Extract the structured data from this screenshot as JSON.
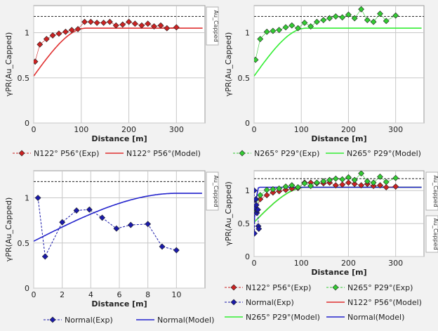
{
  "chart_data": [
    {
      "type": "line",
      "xlabel": "Distance [m]",
      "ylabel": "γPR(Au_Capped)",
      "side_tab": "Au_Capped",
      "xlim": [
        0,
        360
      ],
      "ylim": [
        0,
        1.3
      ],
      "xticks": [
        0,
        100,
        200,
        300
      ],
      "yticks": [
        0,
        0.5,
        1
      ],
      "grid": true,
      "sill": 1.18,
      "series": [
        {
          "name": "N122° P56°(Exp)",
          "kind": "exp",
          "color": "#cc2222",
          "marker": "diamond",
          "x": [
            3,
            13,
            27,
            40,
            53,
            67,
            80,
            93,
            107,
            120,
            133,
            147,
            160,
            173,
            187,
            200,
            213,
            227,
            240,
            253,
            267,
            280,
            300
          ],
          "y": [
            0.68,
            0.87,
            0.93,
            0.97,
            0.99,
            1.01,
            1.03,
            1.04,
            1.12,
            1.12,
            1.11,
            1.11,
            1.12,
            1.08,
            1.09,
            1.12,
            1.1,
            1.08,
            1.1,
            1.07,
            1.08,
            1.05,
            1.06
          ]
        },
        {
          "name": "N122° P56°(Model)",
          "kind": "model",
          "color": "#e03030",
          "nugget": 0.52,
          "sill": 1.05,
          "range": 110,
          "xmax": 355
        }
      ]
    },
    {
      "type": "line",
      "xlabel": "Distance [m]",
      "ylabel": "γPR(Au_Capped)",
      "side_tab": "",
      "xlim": [
        0,
        360
      ],
      "ylim": [
        0,
        1.3
      ],
      "xticks": [
        0,
        100,
        200,
        300
      ],
      "yticks": [
        0,
        0.5,
        1
      ],
      "grid": true,
      "sill": 1.18,
      "series": [
        {
          "name": "N265° P29°(Exp)",
          "kind": "exp",
          "color": "#33cc33",
          "marker": "diamond",
          "x": [
            3,
            13,
            27,
            40,
            53,
            67,
            80,
            93,
            107,
            120,
            133,
            147,
            160,
            173,
            187,
            200,
            213,
            227,
            240,
            253,
            267,
            280,
            300
          ],
          "y": [
            0.7,
            0.93,
            1.01,
            1.02,
            1.03,
            1.06,
            1.08,
            1.05,
            1.11,
            1.07,
            1.12,
            1.14,
            1.16,
            1.18,
            1.17,
            1.2,
            1.16,
            1.26,
            1.14,
            1.12,
            1.21,
            1.13,
            1.19
          ]
        },
        {
          "name": "N265° P29°(Model)",
          "kind": "model",
          "color": "#33ee33",
          "nugget": 0.52,
          "sill": 1.05,
          "range": 110,
          "xmax": 355
        }
      ]
    },
    {
      "type": "line",
      "xlabel": "Distance [m]",
      "ylabel": "γPR(Au_Capped)",
      "side_tab": "Au_Capped",
      "xlim": [
        0,
        12
      ],
      "ylim": [
        0,
        1.3
      ],
      "xticks": [
        0,
        2,
        4,
        6,
        8,
        10
      ],
      "yticks": [
        0,
        0.5,
        1
      ],
      "grid": true,
      "sill": 1.18,
      "series": [
        {
          "name": "Normal(Exp)",
          "kind": "exp",
          "color": "#1a1aaa",
          "marker": "diamond",
          "dashed": true,
          "x": [
            0.3,
            0.8,
            2,
            3,
            3.9,
            4.8,
            5.8,
            6.8,
            8,
            9,
            10
          ],
          "y": [
            1.0,
            0.35,
            0.73,
            0.86,
            0.87,
            0.78,
            0.66,
            0.7,
            0.71,
            0.46,
            0.42
          ]
        },
        {
          "name": "Normal(Model)",
          "kind": "model",
          "color": "#2222cc",
          "nugget": 0.52,
          "sill": 1.05,
          "range": 10,
          "xmax": 11.8
        }
      ]
    },
    {
      "type": "line",
      "xlabel": "Distance [m]",
      "ylabel": "γPR(Au_Capped)",
      "side_tab": "Au_Capped",
      "side_tab_2": "Au_Capped",
      "xlim": [
        0,
        360
      ],
      "ylim": [
        0,
        1.3
      ],
      "xticks": [
        0,
        100,
        200,
        300
      ],
      "yticks": [
        0,
        0.5,
        1
      ],
      "grid": true,
      "sill": 1.18,
      "series": [
        {
          "name": "N122° P56°(Exp)",
          "kind": "exp",
          "color": "#cc2222",
          "marker": "diamond",
          "x": [
            3,
            13,
            27,
            40,
            53,
            67,
            80,
            93,
            107,
            120,
            133,
            147,
            160,
            173,
            187,
            200,
            213,
            227,
            240,
            253,
            267,
            280,
            300
          ],
          "y": [
            0.68,
            0.87,
            0.93,
            0.97,
            0.99,
            1.01,
            1.03,
            1.04,
            1.12,
            1.12,
            1.11,
            1.11,
            1.12,
            1.08,
            1.09,
            1.12,
            1.1,
            1.08,
            1.1,
            1.07,
            1.08,
            1.05,
            1.06
          ]
        },
        {
          "name": "N265° P29°(Exp)",
          "kind": "exp",
          "color": "#33cc33",
          "marker": "diamond",
          "x": [
            3,
            13,
            27,
            40,
            53,
            67,
            80,
            93,
            107,
            120,
            133,
            147,
            160,
            173,
            187,
            200,
            213,
            227,
            240,
            253,
            267,
            280,
            300
          ],
          "y": [
            0.7,
            0.93,
            1.01,
            1.02,
            1.03,
            1.06,
            1.08,
            1.05,
            1.11,
            1.07,
            1.12,
            1.14,
            1.16,
            1.18,
            1.17,
            1.2,
            1.16,
            1.26,
            1.14,
            1.12,
            1.21,
            1.13,
            1.19
          ]
        },
        {
          "name": "Normal(Exp)",
          "kind": "exp",
          "color": "#1a1aaa",
          "marker": "diamond",
          "dashed": true,
          "x": [
            0.3,
            0.8,
            2,
            3,
            3.9,
            4.8,
            5.8,
            6.8,
            8,
            9,
            10
          ],
          "y": [
            1.0,
            0.35,
            0.73,
            0.86,
            0.87,
            0.78,
            0.66,
            0.7,
            0.71,
            0.46,
            0.42
          ]
        },
        {
          "name": "N122° P56°(Model)",
          "kind": "model",
          "color": "#e03030",
          "nugget": 0.52,
          "sill": 1.05,
          "range": 110,
          "xmax": 355
        },
        {
          "name": "N265° P29°(Model)",
          "kind": "model",
          "color": "#33ee33",
          "nugget": 0.52,
          "sill": 1.05,
          "range": 110,
          "xmax": 355
        },
        {
          "name": "Normal(Model)",
          "kind": "model",
          "color": "#2222cc",
          "nugget": 0.52,
          "sill": 1.05,
          "range": 10,
          "xmax": 355
        }
      ]
    }
  ]
}
